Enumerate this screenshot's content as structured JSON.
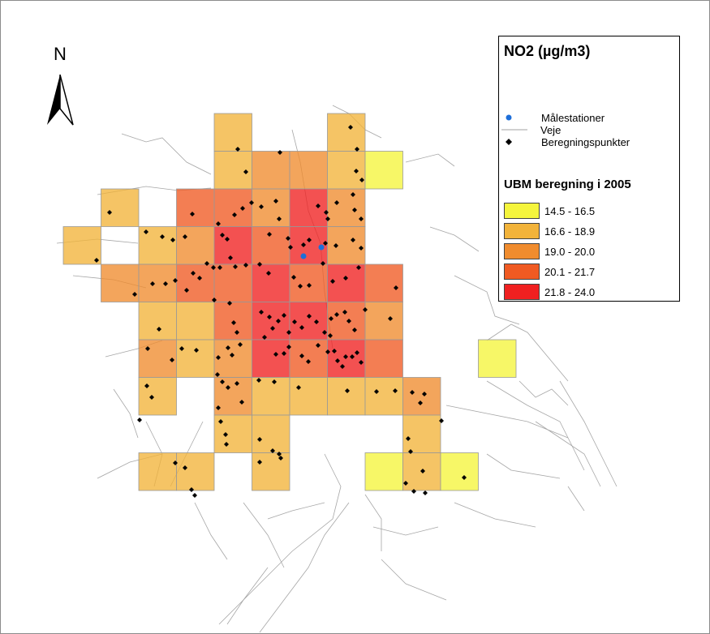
{
  "north_label": "N",
  "legend": {
    "title": "NO2 (µg/m3)",
    "items": [
      {
        "label": "Målestationer",
        "symbol": "blue-dot-icon",
        "color": "#1e6fd9"
      },
      {
        "label": "Beregningspunkter",
        "symbol": "black-diamond-icon",
        "color": "#000000"
      },
      {
        "label": "Veje",
        "symbol": "grey-line-icon",
        "color": "#a0a0a0"
      }
    ],
    "subtitle": "UBM beregning i 2005",
    "classes": [
      {
        "label": "14.5 - 16.5",
        "color": "#f5f53c"
      },
      {
        "label": "16.6 - 18.9",
        "color": "#f2b33a"
      },
      {
        "label": "19.0 - 20.0",
        "color": "#f08c2e"
      },
      {
        "label": "20.1 - 21.7",
        "color": "#f05a22"
      },
      {
        "label": "21.8 - 24.0",
        "color": "#f02020"
      }
    ]
  },
  "grid_cells": [
    {
      "col": 4,
      "row": 0,
      "cls": 1
    },
    {
      "col": 7,
      "row": 0,
      "cls": 1
    },
    {
      "col": 4,
      "row": 1,
      "cls": 1
    },
    {
      "col": 5,
      "row": 1,
      "cls": 2
    },
    {
      "col": 6,
      "row": 1,
      "cls": 2
    },
    {
      "col": 7,
      "row": 1,
      "cls": 1
    },
    {
      "col": 8,
      "row": 1,
      "cls": 0
    },
    {
      "col": 1,
      "row": 2,
      "cls": 1
    },
    {
      "col": 3,
      "row": 2,
      "cls": 3
    },
    {
      "col": 4,
      "row": 2,
      "cls": 3
    },
    {
      "col": 5,
      "row": 2,
      "cls": 2
    },
    {
      "col": 6,
      "row": 2,
      "cls": 4
    },
    {
      "col": 7,
      "row": 2,
      "cls": 2
    },
    {
      "col": 0,
      "row": 3,
      "cls": 1
    },
    {
      "col": 2,
      "row": 3,
      "cls": 1
    },
    {
      "col": 3,
      "row": 3,
      "cls": 2
    },
    {
      "col": 4,
      "row": 3,
      "cls": 4
    },
    {
      "col": 5,
      "row": 3,
      "cls": 3
    },
    {
      "col": 6,
      "row": 3,
      "cls": 4
    },
    {
      "col": 7,
      "row": 3,
      "cls": 2
    },
    {
      "col": 1,
      "row": 4,
      "cls": 2
    },
    {
      "col": 2,
      "row": 4,
      "cls": 2
    },
    {
      "col": 3,
      "row": 4,
      "cls": 3
    },
    {
      "col": 4,
      "row": 4,
      "cls": 3
    },
    {
      "col": 5,
      "row": 4,
      "cls": 4
    },
    {
      "col": 6,
      "row": 4,
      "cls": 3
    },
    {
      "col": 7,
      "row": 4,
      "cls": 4
    },
    {
      "col": 8,
      "row": 4,
      "cls": 3
    },
    {
      "col": 2,
      "row": 5,
      "cls": 1
    },
    {
      "col": 3,
      "row": 5,
      "cls": 1
    },
    {
      "col": 4,
      "row": 5,
      "cls": 3
    },
    {
      "col": 5,
      "row": 5,
      "cls": 4
    },
    {
      "col": 6,
      "row": 5,
      "cls": 4
    },
    {
      "col": 7,
      "row": 5,
      "cls": 3
    },
    {
      "col": 8,
      "row": 5,
      "cls": 2
    },
    {
      "col": 2,
      "row": 6,
      "cls": 2
    },
    {
      "col": 3,
      "row": 6,
      "cls": 1
    },
    {
      "col": 4,
      "row": 6,
      "cls": 2
    },
    {
      "col": 5,
      "row": 6,
      "cls": 4
    },
    {
      "col": 6,
      "row": 6,
      "cls": 3
    },
    {
      "col": 7,
      "row": 6,
      "cls": 4
    },
    {
      "col": 8,
      "row": 6,
      "cls": 3
    },
    {
      "col": 11,
      "row": 6,
      "cls": 0
    },
    {
      "col": 2,
      "row": 7,
      "cls": 1
    },
    {
      "col": 4,
      "row": 7,
      "cls": 2
    },
    {
      "col": 5,
      "row": 7,
      "cls": 1
    },
    {
      "col": 6,
      "row": 7,
      "cls": 1
    },
    {
      "col": 7,
      "row": 7,
      "cls": 1
    },
    {
      "col": 8,
      "row": 7,
      "cls": 1
    },
    {
      "col": 9,
      "row": 7,
      "cls": 2
    },
    {
      "col": 4,
      "row": 8,
      "cls": 1
    },
    {
      "col": 5,
      "row": 8,
      "cls": 1
    },
    {
      "col": 9,
      "row": 8,
      "cls": 1
    },
    {
      "col": 2,
      "row": 9,
      "cls": 1
    },
    {
      "col": 3,
      "row": 9,
      "cls": 1
    },
    {
      "col": 5,
      "row": 9,
      "cls": 1
    },
    {
      "col": 8,
      "row": 9,
      "cls": 0
    },
    {
      "col": 9,
      "row": 9,
      "cls": 1
    },
    {
      "col": 10,
      "row": 9,
      "cls": 0
    }
  ],
  "stations": [
    [
      374,
      316
    ],
    [
      396,
      305
    ]
  ],
  "calc_points": [
    [
      432,
      157
    ],
    [
      440,
      184
    ],
    [
      293,
      184
    ],
    [
      345,
      188
    ],
    [
      303,
      212
    ],
    [
      439,
      211
    ],
    [
      446,
      222
    ],
    [
      135,
      262
    ],
    [
      237,
      264
    ],
    [
      269,
      276
    ],
    [
      289,
      265
    ],
    [
      299,
      257
    ],
    [
      310,
      250
    ],
    [
      322,
      255
    ],
    [
      340,
      248
    ],
    [
      344,
      270
    ],
    [
      392,
      254
    ],
    [
      402,
      262
    ],
    [
      404,
      270
    ],
    [
      415,
      250
    ],
    [
      435,
      240
    ],
    [
      437,
      259
    ],
    [
      445,
      270
    ],
    [
      119,
      321
    ],
    [
      180,
      286
    ],
    [
      200,
      292
    ],
    [
      213,
      296
    ],
    [
      228,
      292
    ],
    [
      274,
      290
    ],
    [
      280,
      295
    ],
    [
      332,
      289
    ],
    [
      355,
      294
    ],
    [
      358,
      305
    ],
    [
      374,
      302
    ],
    [
      381,
      296
    ],
    [
      401,
      300
    ],
    [
      414,
      303
    ],
    [
      435,
      296
    ],
    [
      445,
      306
    ],
    [
      166,
      363
    ],
    [
      188,
      350
    ],
    [
      204,
      350
    ],
    [
      216,
      346
    ],
    [
      238,
      337
    ],
    [
      246,
      343
    ],
    [
      255,
      325
    ],
    [
      263,
      330
    ],
    [
      271,
      330
    ],
    [
      284,
      318
    ],
    [
      290,
      329
    ],
    [
      303,
      327
    ],
    [
      320,
      326
    ],
    [
      331,
      337
    ],
    [
      362,
      342
    ],
    [
      370,
      353
    ],
    [
      381,
      352
    ],
    [
      398,
      325
    ],
    [
      410,
      347
    ],
    [
      426,
      343
    ],
    [
      442,
      330
    ],
    [
      488,
      355
    ],
    [
      196,
      406
    ],
    [
      230,
      358
    ],
    [
      264,
      370
    ],
    [
      283,
      374
    ],
    [
      288,
      398
    ],
    [
      292,
      410
    ],
    [
      322,
      385
    ],
    [
      332,
      391
    ],
    [
      336,
      405
    ],
    [
      343,
      396
    ],
    [
      350,
      389
    ],
    [
      356,
      410
    ],
    [
      363,
      397
    ],
    [
      372,
      404
    ],
    [
      381,
      390
    ],
    [
      390,
      397
    ],
    [
      400,
      410
    ],
    [
      408,
      393
    ],
    [
      415,
      388
    ],
    [
      425,
      385
    ],
    [
      430,
      396
    ],
    [
      450,
      382
    ],
    [
      437,
      407
    ],
    [
      407,
      414
    ],
    [
      481,
      393
    ],
    [
      182,
      430
    ],
    [
      212,
      444
    ],
    [
      224,
      430
    ],
    [
      242,
      432
    ],
    [
      269,
      441
    ],
    [
      281,
      429
    ],
    [
      286,
      438
    ],
    [
      296,
      425
    ],
    [
      326,
      416
    ],
    [
      340,
      437
    ],
    [
      350,
      436
    ],
    [
      356,
      428
    ],
    [
      372,
      439
    ],
    [
      380,
      446
    ],
    [
      392,
      426
    ],
    [
      404,
      434
    ],
    [
      412,
      433
    ],
    [
      416,
      445
    ],
    [
      422,
      452
    ],
    [
      426,
      440
    ],
    [
      434,
      440
    ],
    [
      440,
      435
    ],
    [
      445,
      447
    ],
    [
      172,
      518
    ],
    [
      181,
      476
    ],
    [
      187,
      490
    ],
    [
      268,
      462
    ],
    [
      274,
      471
    ],
    [
      281,
      478
    ],
    [
      292,
      473
    ],
    [
      298,
      496
    ],
    [
      319,
      469
    ],
    [
      338,
      471
    ],
    [
      368,
      478
    ],
    [
      428,
      482
    ],
    [
      464,
      483
    ],
    [
      487,
      482
    ],
    [
      508,
      484
    ],
    [
      518,
      497
    ],
    [
      523,
      486
    ],
    [
      544,
      519
    ],
    [
      269,
      503
    ],
    [
      272,
      520
    ],
    [
      278,
      536
    ],
    [
      279,
      548
    ],
    [
      320,
      542
    ],
    [
      336,
      556
    ],
    [
      344,
      560
    ],
    [
      346,
      565
    ],
    [
      503,
      541
    ],
    [
      506,
      557
    ],
    [
      510,
      606
    ],
    [
      500,
      596
    ],
    [
      521,
      581
    ],
    [
      216,
      571
    ],
    [
      228,
      577
    ],
    [
      236,
      604
    ],
    [
      240,
      611
    ],
    [
      320,
      570
    ],
    [
      524,
      608
    ],
    [
      572,
      589
    ]
  ]
}
